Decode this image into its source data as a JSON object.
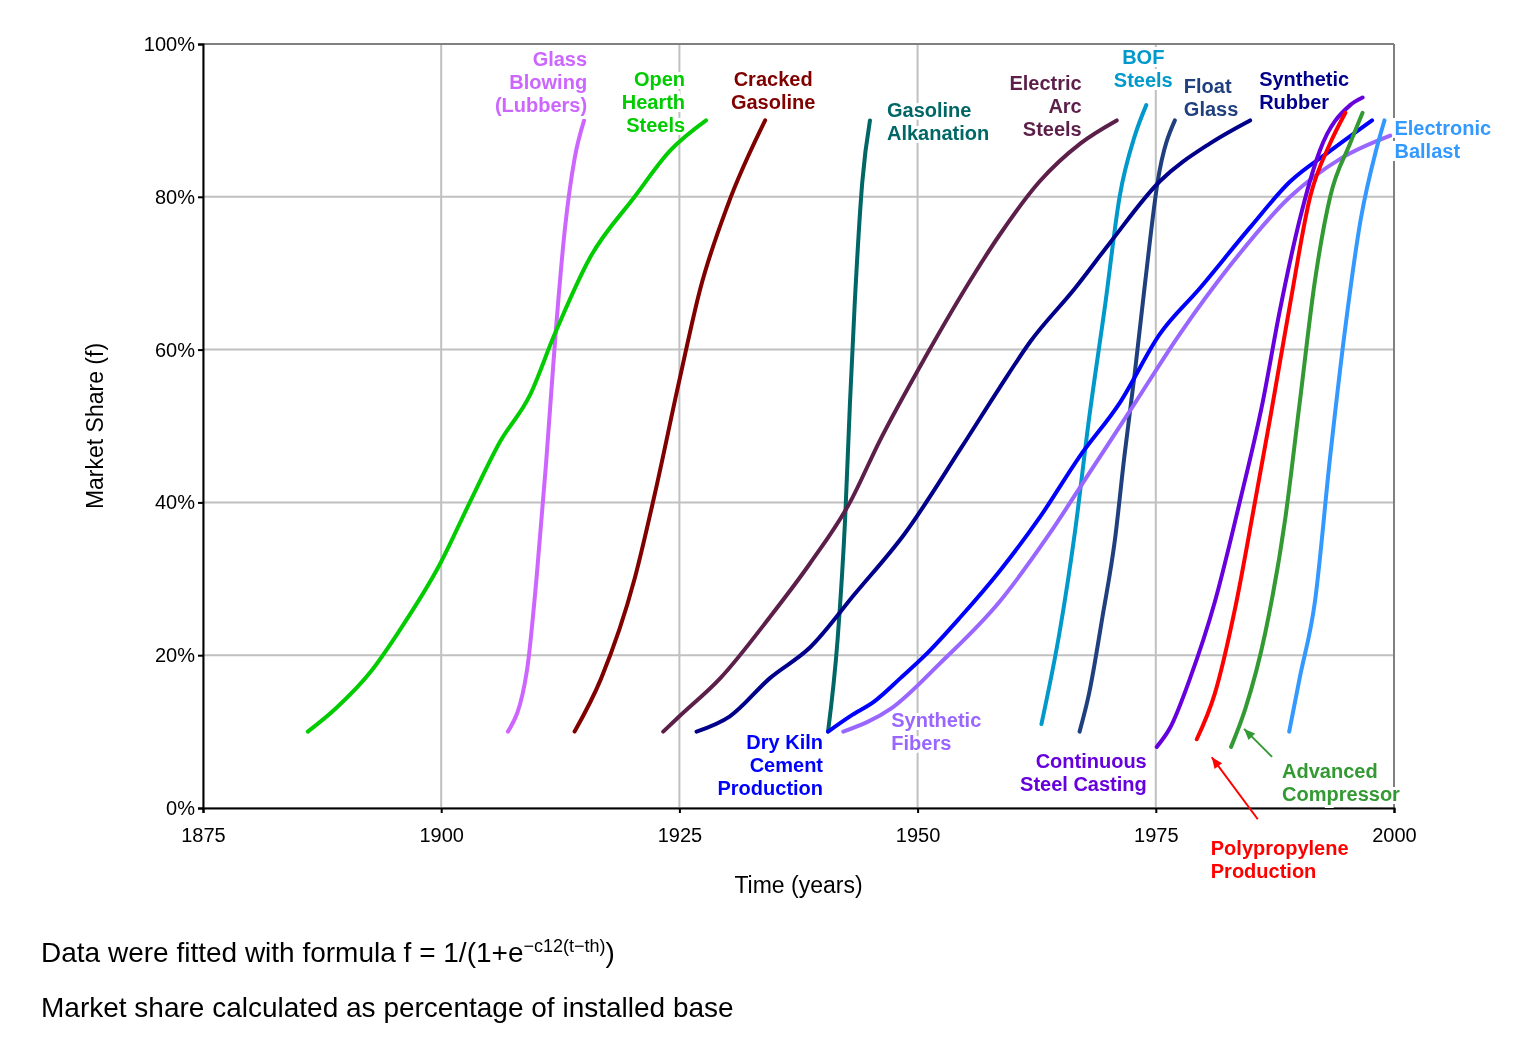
{
  "chart_data": {
    "type": "line",
    "xlabel": "Time (years)",
    "ylabel": "Market Share (f)",
    "xlim": [
      1875,
      2000
    ],
    "xticks": [
      1875,
      1900,
      1925,
      1950,
      1975,
      2000
    ],
    "ylim": [
      0,
      100
    ],
    "yticks": [
      {
        "value": 0,
        "label": "0%"
      },
      {
        "value": 20,
        "label": "20%"
      },
      {
        "value": 40,
        "label": "40%"
      },
      {
        "value": 60,
        "label": "60%"
      },
      {
        "value": 80,
        "label": "80%"
      },
      {
        "value": 100,
        "label": "100%"
      }
    ],
    "grid": true,
    "marker": "none",
    "line_style": "solid",
    "annotations": [
      "Data were fitted with formula f = 1/(1+e$^{−c12(t−th)}$)",
      "Market share calculated as percentage of installed base"
    ],
    "series": [
      {
        "name": "Glass Blowing (Lubbers)",
        "color": "#cc66ff",
        "x": [
          1907,
          1909,
          1910,
          1911,
          1912,
          1913,
          1914,
          1915
        ],
        "values": [
          10,
          18,
          30,
          45,
          62,
          76,
          85,
          90
        ]
      },
      {
        "name": "Open Hearth Steels",
        "color": "#00cc00",
        "x": [
          1886,
          1888.9,
          1892.7,
          1895.5,
          1899.9,
          1903,
          1906.2,
          1909.3,
          1911.9,
          1915.6,
          1920.3,
          1924,
          1927.8
        ],
        "values": [
          10,
          13,
          18,
          23,
          32,
          40,
          48,
          54,
          62,
          72,
          80,
          86,
          90
        ]
      },
      {
        "name": "Cracked Gasoline",
        "color": "#800000",
        "x": [
          1914,
          1916.8,
          1920.3,
          1922.4,
          1925,
          1927.2,
          1930.1,
          1934
        ],
        "values": [
          10,
          17,
          30,
          41,
          56,
          68,
          79,
          90
        ]
      },
      {
        "name": "Gasoline Alkanation",
        "color": "#006666",
        "x": [
          1940.6,
          1941.6,
          1942.4,
          1942.9,
          1943.4,
          1944.2,
          1945
        ],
        "values": [
          10,
          22,
          38,
          53,
          66,
          82,
          90
        ]
      },
      {
        "name": "Electric Arc Steels",
        "color": "#5c1f4a",
        "x": [
          1923.3,
          1925,
          1929.3,
          1934.5,
          1938.7,
          1942.9,
          1946,
          1950.8,
          1956,
          1958.6,
          1962.8,
          1967.1,
          1970.9
        ],
        "values": [
          10,
          12,
          17,
          25,
          32,
          40,
          48,
          59,
          70,
          75,
          82,
          87,
          90
        ]
      },
      {
        "name": "BOF Steels",
        "color": "#0099cc",
        "x": [
          1963,
          1964.9,
          1966.5,
          1968,
          1969.7,
          1971.2,
          1972.8,
          1974
        ],
        "values": [
          11,
          23,
          36,
          51,
          66,
          80,
          88,
          92
        ]
      },
      {
        "name": "Float Glass",
        "color": "#1f3f7f",
        "x": [
          1967,
          1968,
          1969.4,
          1970.7,
          1971.7,
          1972.8,
          1973.9,
          1975.2,
          1977
        ],
        "values": [
          10,
          15,
          25,
          35,
          46,
          57,
          69,
          82,
          90
        ]
      },
      {
        "name": "Synthetic Rubber",
        "color": "#00008b",
        "x": [
          1926.8,
          1930.3,
          1934.5,
          1938.7,
          1943.4,
          1948.7,
          1954.5,
          1958.6,
          1961.8,
          1966.5,
          1970.2,
          1975.4,
          1980.7,
          1984.9
        ],
        "values": [
          10,
          12,
          17,
          21,
          28,
          36,
          47,
          55,
          61,
          68,
          74,
          82,
          87,
          90
        ]
      },
      {
        "name": "Dry Kiln Cement Production",
        "color": "#0000ff",
        "x": [
          1940.6,
          1942.9,
          1945.5,
          1948.2,
          1950.8,
          1954.5,
          1958.6,
          1962.8,
          1967,
          1971.2,
          1975.4,
          1979.6,
          1984.9,
          1989.1,
          1993.3,
          1997.7
        ],
        "values": [
          10,
          12,
          14,
          17,
          20,
          25,
          31,
          38,
          46,
          53,
          62,
          68,
          76,
          82,
          86,
          90
        ]
      },
      {
        "name": "Synthetic Fibers",
        "color": "#9966ff",
        "x": [
          1942.2,
          1947.2,
          1952.4,
          1958.6,
          1963.9,
          1968.1,
          1972.3,
          1977.5,
          1982.8,
          1989.1,
          1994.4,
          1999.6
        ],
        "values": [
          10,
          13,
          19,
          27,
          36,
          44,
          52,
          62,
          71,
          80,
          85,
          88
        ]
      },
      {
        "name": "Continuous Steel Casting",
        "color": "#6600dd",
        "x": [
          1975.1,
          1976.5,
          1978.6,
          1981.2,
          1983.8,
          1986.2,
          1988,
          1990.1,
          1992.2,
          1995.4,
          1996.7
        ],
        "values": [
          8,
          10.5,
          17,
          27,
          40,
          53,
          65,
          77,
          86,
          92,
          93
        ]
      },
      {
        "name": "Polypropylene Production",
        "color": "#ff0000",
        "x": [
          1979.3,
          1981.2,
          1983.3,
          1985.4,
          1987,
          1989.1,
          1991.2,
          1993.3,
          1994.9
        ],
        "values": [
          9,
          15,
          26,
          40,
          51,
          66,
          80,
          87,
          91
        ]
      },
      {
        "name": "Advanced Compressor",
        "color": "#339933",
        "x": [
          1982.9,
          1984.4,
          1986.5,
          1988.6,
          1990.1,
          1991.7,
          1993.3,
          1995.4,
          1996.7
        ],
        "values": [
          8,
          13,
          23,
          38,
          53,
          69,
          80,
          87,
          91
        ]
      },
      {
        "name": "Electronic Ballast",
        "color": "#3399ff",
        "x": [
          1989,
          1990.1,
          1991.7,
          1993.3,
          1994.9,
          1996.5,
          1998.1,
          1999
        ],
        "values": [
          10,
          17,
          27,
          46,
          63,
          77,
          86,
          90
        ]
      }
    ]
  }
}
